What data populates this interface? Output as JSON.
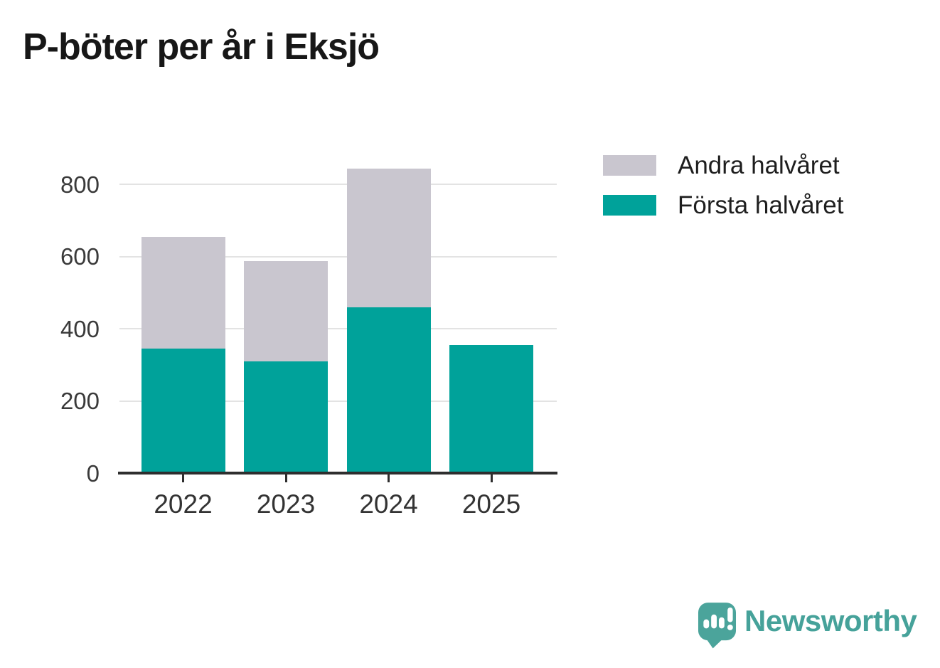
{
  "title": "P-böter per år i Eksjö",
  "legend": [
    {
      "label": "Andra halvåret",
      "color": "#c9c6cf"
    },
    {
      "label": "Första halvåret",
      "color": "#00a29a"
    }
  ],
  "chart_data": {
    "type": "bar",
    "stacked": true,
    "title": "P-böter per år i Eksjö",
    "categories": [
      "2022",
      "2023",
      "2024",
      "2025"
    ],
    "series": [
      {
        "name": "Första halvåret",
        "color": "#00a29a",
        "values": [
          340,
          305,
          455,
          350
        ]
      },
      {
        "name": "Andra halvåret",
        "color": "#c9c6cf",
        "values": [
          310,
          278,
          385,
          0
        ]
      }
    ],
    "totals": [
      650,
      583,
      840,
      350
    ],
    "xlabel": "",
    "ylabel": "",
    "ylim": [
      0,
      880
    ],
    "yticks": [
      0,
      200,
      400,
      600,
      800
    ],
    "grid": true,
    "legend_position": "upper-right-outside"
  },
  "branding": {
    "logo_text": "Newsworthy",
    "logo_color": "#46a29a",
    "logo_icon": "speech-bubble-bar-chart-icon"
  }
}
